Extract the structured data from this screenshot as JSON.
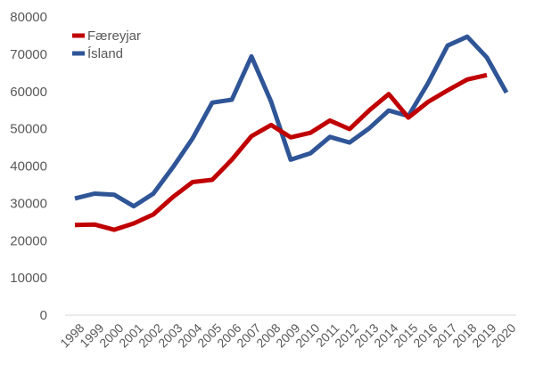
{
  "chart_data": {
    "type": "line",
    "title": "",
    "xlabel": "",
    "ylabel": "",
    "ylim": [
      0,
      80000
    ],
    "yticks": [
      0,
      10000,
      20000,
      30000,
      40000,
      50000,
      60000,
      70000,
      80000
    ],
    "grid": false,
    "legend_position": "top-left",
    "x": [
      1998,
      1999,
      2000,
      2001,
      2002,
      2003,
      2004,
      2005,
      2006,
      2007,
      2008,
      2009,
      2010,
      2011,
      2012,
      2013,
      2014,
      2015,
      2016,
      2017,
      2018,
      2019,
      2020
    ],
    "series": [
      {
        "name": "Færeyjar",
        "color": "#c00000",
        "values": [
          24200,
          24300,
          22900,
          24600,
          27000,
          31700,
          35700,
          36300,
          41700,
          48000,
          51000,
          47700,
          48900,
          52200,
          49900,
          54900,
          59300,
          53000,
          57200,
          60300,
          63200,
          64400,
          null
        ]
      },
      {
        "name": "Ísland",
        "color": "#2f5597",
        "values": [
          31300,
          32600,
          32300,
          29200,
          32600,
          39700,
          47400,
          57000,
          57800,
          69400,
          57300,
          41700,
          43400,
          47800,
          46300,
          50100,
          54900,
          53400,
          62200,
          72300,
          74700,
          69100,
          59700
        ]
      }
    ]
  }
}
